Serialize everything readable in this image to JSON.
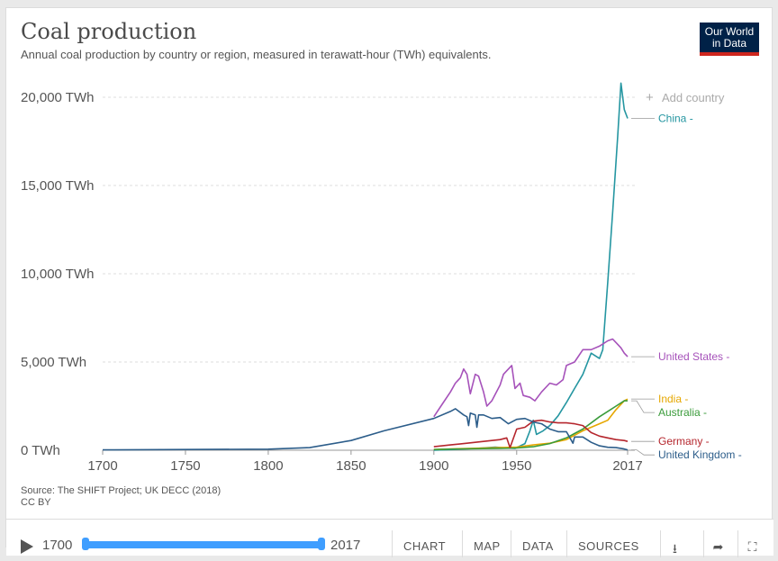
{
  "header": {
    "title": "Coal production",
    "subtitle": "Annual coal production by country or region, measured in terawatt-hour (TWh) equivalents.",
    "logo_line1": "Our World",
    "logo_line2": "in Data",
    "add_country": "Add country"
  },
  "footer": {
    "source": "Source: The SHIFT Project; UK DECC (2018)",
    "license": "CC BY",
    "start_year": "1700",
    "end_year": "2017",
    "tabs": [
      "CHART",
      "MAP",
      "DATA",
      "SOURCES"
    ],
    "icons": [
      "download-icon",
      "share-icon",
      "fullscreen-icon"
    ]
  },
  "chart_data": {
    "type": "line",
    "title": "Coal production",
    "xlabel": "",
    "ylabel": "",
    "xlim": [
      1700,
      2017
    ],
    "ylim": [
      0,
      20000
    ],
    "x_ticks": [
      1700,
      1750,
      1800,
      1850,
      1900,
      1950,
      2017
    ],
    "y_ticks": [
      {
        "value": 0,
        "label": "0 TWh"
      },
      {
        "value": 5000,
        "label": "5,000 TWh"
      },
      {
        "value": 10000,
        "label": "10,000 TWh"
      },
      {
        "value": 15000,
        "label": "15,000 TWh"
      },
      {
        "value": 20000,
        "label": "20,000 TWh"
      }
    ],
    "series": [
      {
        "name": "China",
        "label": "China -",
        "color": "#2596a1",
        "end_value": 18800,
        "x": [
          1900,
          1912,
          1925,
          1937,
          1945,
          1949,
          1955,
          1958,
          1960,
          1962,
          1966,
          1970,
          1975,
          1980,
          1985,
          1990,
          1995,
          2000,
          2002,
          2005,
          2008,
          2011,
          2013,
          2015,
          2017
        ],
        "y": [
          0,
          40,
          100,
          180,
          120,
          100,
          380,
          1100,
          1700,
          900,
          1100,
          1400,
          1950,
          2700,
          3500,
          4300,
          5500,
          5200,
          5700,
          9500,
          13500,
          17800,
          20800,
          19300,
          18800
        ]
      },
      {
        "name": "United States",
        "label": "United States -",
        "color": "#a652ba",
        "end_value": 5300,
        "x": [
          1900,
          1905,
          1910,
          1913,
          1916,
          1918,
          1920,
          1922,
          1925,
          1927,
          1930,
          1932,
          1935,
          1940,
          1942,
          1944,
          1947,
          1949,
          1952,
          1954,
          1958,
          1961,
          1965,
          1970,
          1974,
          1978,
          1980,
          1985,
          1990,
          1995,
          2000,
          2005,
          2008,
          2010,
          2013,
          2015,
          2017
        ],
        "y": [
          1900,
          2600,
          3300,
          3800,
          4100,
          4600,
          4300,
          3200,
          4300,
          4200,
          3300,
          2500,
          2800,
          3700,
          4300,
          4500,
          4800,
          3500,
          3800,
          3100,
          3000,
          2800,
          3300,
          3800,
          3700,
          4000,
          4800,
          5000,
          5700,
          5700,
          5900,
          6200,
          6300,
          6100,
          5800,
          5500,
          5300
        ]
      },
      {
        "name": "India",
        "label": "India -",
        "color": "#e6a700",
        "end_value": 2900,
        "x": [
          1900,
          1920,
          1940,
          1950,
          1960,
          1970,
          1980,
          1990,
          1995,
          2000,
          2005,
          2010,
          2015,
          2017
        ],
        "y": [
          40,
          100,
          150,
          180,
          300,
          400,
          600,
          1100,
          1300,
          1500,
          1700,
          2300,
          2800,
          2900
        ]
      },
      {
        "name": "Australia",
        "label": "Australia -",
        "color": "#3a9b3a",
        "end_value": 2800,
        "x": [
          1900,
          1920,
          1940,
          1950,
          1960,
          1970,
          1980,
          1990,
          2000,
          2005,
          2010,
          2015,
          2017
        ],
        "y": [
          40,
          80,
          100,
          130,
          200,
          380,
          700,
          1200,
          1900,
          2200,
          2500,
          2800,
          2800
        ]
      },
      {
        "name": "Germany",
        "label": "Germany -",
        "color": "#b5262d",
        "end_value": 500,
        "x": [
          1900,
          1910,
          1920,
          1940,
          1944,
          1946,
          1950,
          1955,
          1960,
          1965,
          1970,
          1975,
          1980,
          1985,
          1990,
          1995,
          2000,
          2005,
          2010,
          2015,
          2017
        ],
        "y": [
          200,
          300,
          400,
          600,
          700,
          150,
          1200,
          1300,
          1650,
          1700,
          1600,
          1550,
          1550,
          1500,
          1400,
          1000,
          800,
          700,
          600,
          550,
          500
        ]
      },
      {
        "name": "United Kingdom",
        "label": "United Kingdom -",
        "color": "#2c5d8a",
        "end_value": 20,
        "x": [
          1700,
          1750,
          1800,
          1825,
          1850,
          1870,
          1900,
          1910,
          1913,
          1918,
          1920,
          1921,
          1922,
          1925,
          1926,
          1927,
          1930,
          1935,
          1940,
          1945,
          1947,
          1950,
          1955,
          1960,
          1965,
          1970,
          1975,
          1980,
          1984,
          1985,
          1990,
          1995,
          2000,
          2005,
          2010,
          2015,
          2017
        ],
        "y": [
          20,
          40,
          60,
          150,
          550,
          1100,
          1800,
          2200,
          2350,
          2000,
          1900,
          1400,
          2100,
          2000,
          1300,
          2000,
          2000,
          1800,
          1850,
          1500,
          1600,
          1750,
          1800,
          1600,
          1500,
          1200,
          1050,
          1050,
          400,
          750,
          750,
          450,
          250,
          170,
          150,
          70,
          20
        ]
      }
    ]
  }
}
